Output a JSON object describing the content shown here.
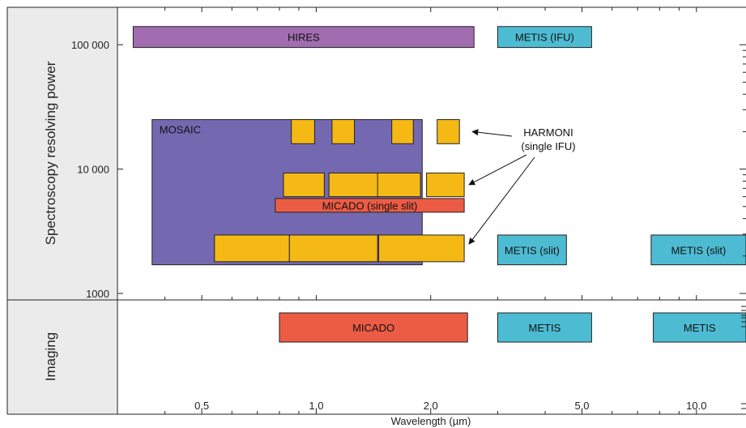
{
  "chart_data": {
    "type": "gantt-bar",
    "xlabel": "Wavelength (µm)",
    "x_scale": "log",
    "xlim": [
      0.3,
      13.5
    ],
    "x_ticks": [
      {
        "value": 0.5,
        "label": "0.5"
      },
      {
        "value": 1.0,
        "label": "1.0"
      },
      {
        "value": 2.0,
        "label": "2.0"
      },
      {
        "value": 5.0,
        "label": "5.0"
      },
      {
        "value": 10.0,
        "label": "10.0"
      }
    ],
    "spectroscopy": {
      "ylabel": "Spectroscopy resolving power",
      "y_scale": "log",
      "ylim": [
        1000,
        200000
      ],
      "y_ticks": [
        {
          "value": 100000,
          "label": "100 000"
        },
        {
          "value": 10000,
          "label": "10 000"
        },
        {
          "value": 1000,
          "label": "1000"
        }
      ],
      "bars": [
        {
          "name": "MOSAIC",
          "x": [
            0.37,
            1.9
          ],
          "y": [
            1700,
            25000
          ],
          "color": "#7469b0",
          "label": "MOSAIC",
          "label_pos": "top-left"
        },
        {
          "name": "HIRES",
          "x": [
            0.33,
            2.6
          ],
          "y": [
            95000,
            140000
          ],
          "color": "#a26db0",
          "label": "HIRES",
          "label_pos": "center"
        },
        {
          "name": "METIS (IFU)",
          "x": [
            3.0,
            5.3
          ],
          "y": [
            95000,
            140000
          ],
          "color": "#4dbcd3",
          "label": "METIS (IFU)",
          "label_pos": "center"
        },
        {
          "name": "HARMONI-1",
          "x": [
            0.86,
            0.99
          ],
          "y": [
            16000,
            25000
          ],
          "color": "#f5b915",
          "label": ""
        },
        {
          "name": "HARMONI-2",
          "x": [
            1.1,
            1.26
          ],
          "y": [
            16000,
            25000
          ],
          "color": "#f5b915",
          "label": ""
        },
        {
          "name": "HARMONI-3",
          "x": [
            1.58,
            1.8
          ],
          "y": [
            16000,
            25000
          ],
          "color": "#f5b915",
          "label": ""
        },
        {
          "name": "HARMONI-4",
          "x": [
            2.08,
            2.38
          ],
          "y": [
            16000,
            25000
          ],
          "color": "#f5b915",
          "label": ""
        },
        {
          "name": "HARMONI-5",
          "x": [
            0.82,
            1.05
          ],
          "y": [
            6000,
            9300
          ],
          "color": "#f5b915",
          "label": ""
        },
        {
          "name": "HARMONI-6",
          "x": [
            1.08,
            1.46
          ],
          "y": [
            6000,
            9300
          ],
          "color": "#f5b915",
          "label": ""
        },
        {
          "name": "HARMONI-7",
          "x": [
            1.45,
            1.88
          ],
          "y": [
            6000,
            9300
          ],
          "color": "#f5b915",
          "label": ""
        },
        {
          "name": "HARMONI-8",
          "x": [
            1.95,
            2.45
          ],
          "y": [
            6000,
            9300
          ],
          "color": "#f5b915",
          "label": ""
        },
        {
          "name": "MICADO (single slit)",
          "x": [
            0.78,
            2.45
          ],
          "y": [
            4500,
            5800
          ],
          "color": "#ec5c45",
          "label": "MICADO (single slit)",
          "label_pos": "center"
        },
        {
          "name": "HARMONI-9",
          "x": [
            0.54,
            0.85
          ],
          "y": [
            1800,
            2950
          ],
          "color": "#f5b915",
          "label": ""
        },
        {
          "name": "HARMONI-10",
          "x": [
            0.85,
            1.45
          ],
          "y": [
            1800,
            2950
          ],
          "color": "#f5b915",
          "label": ""
        },
        {
          "name": "HARMONI-11",
          "x": [
            1.46,
            2.45
          ],
          "y": [
            1800,
            2950
          ],
          "color": "#f5b915",
          "label": ""
        },
        {
          "name": "METIS (slit)",
          "x": [
            3.0,
            4.55
          ],
          "y": [
            1700,
            2950
          ],
          "color": "#4dbcd3",
          "label": "METIS (slit)",
          "label_pos": "center"
        },
        {
          "name": "METIS (slit) 2",
          "x": [
            7.6,
            13.5
          ],
          "y": [
            1700,
            2950
          ],
          "color": "#4dbcd3",
          "label": "METIS (slit)",
          "label_pos": "center"
        }
      ],
      "annotation": {
        "text_lines": [
          "HARMONI",
          "(single IFU)"
        ],
        "arrows_to": [
          {
            "x": 2.5,
            "y": 20000
          },
          {
            "x": 2.45,
            "y": 7500
          },
          {
            "x": 2.45,
            "y": 2500
          }
        ]
      }
    },
    "imaging": {
      "ylabel": "Imaging",
      "bars": [
        {
          "name": "MICADO",
          "x": [
            0.8,
            2.5
          ],
          "color": "#ec5c45",
          "label": "MICADO"
        },
        {
          "name": "METIS",
          "x": [
            3.0,
            5.3
          ],
          "color": "#4dbcd3",
          "label": "METIS"
        },
        {
          "name": "METIS 2",
          "x": [
            7.7,
            13.5
          ],
          "color": "#4dbcd3",
          "label": "METIS"
        }
      ]
    }
  }
}
